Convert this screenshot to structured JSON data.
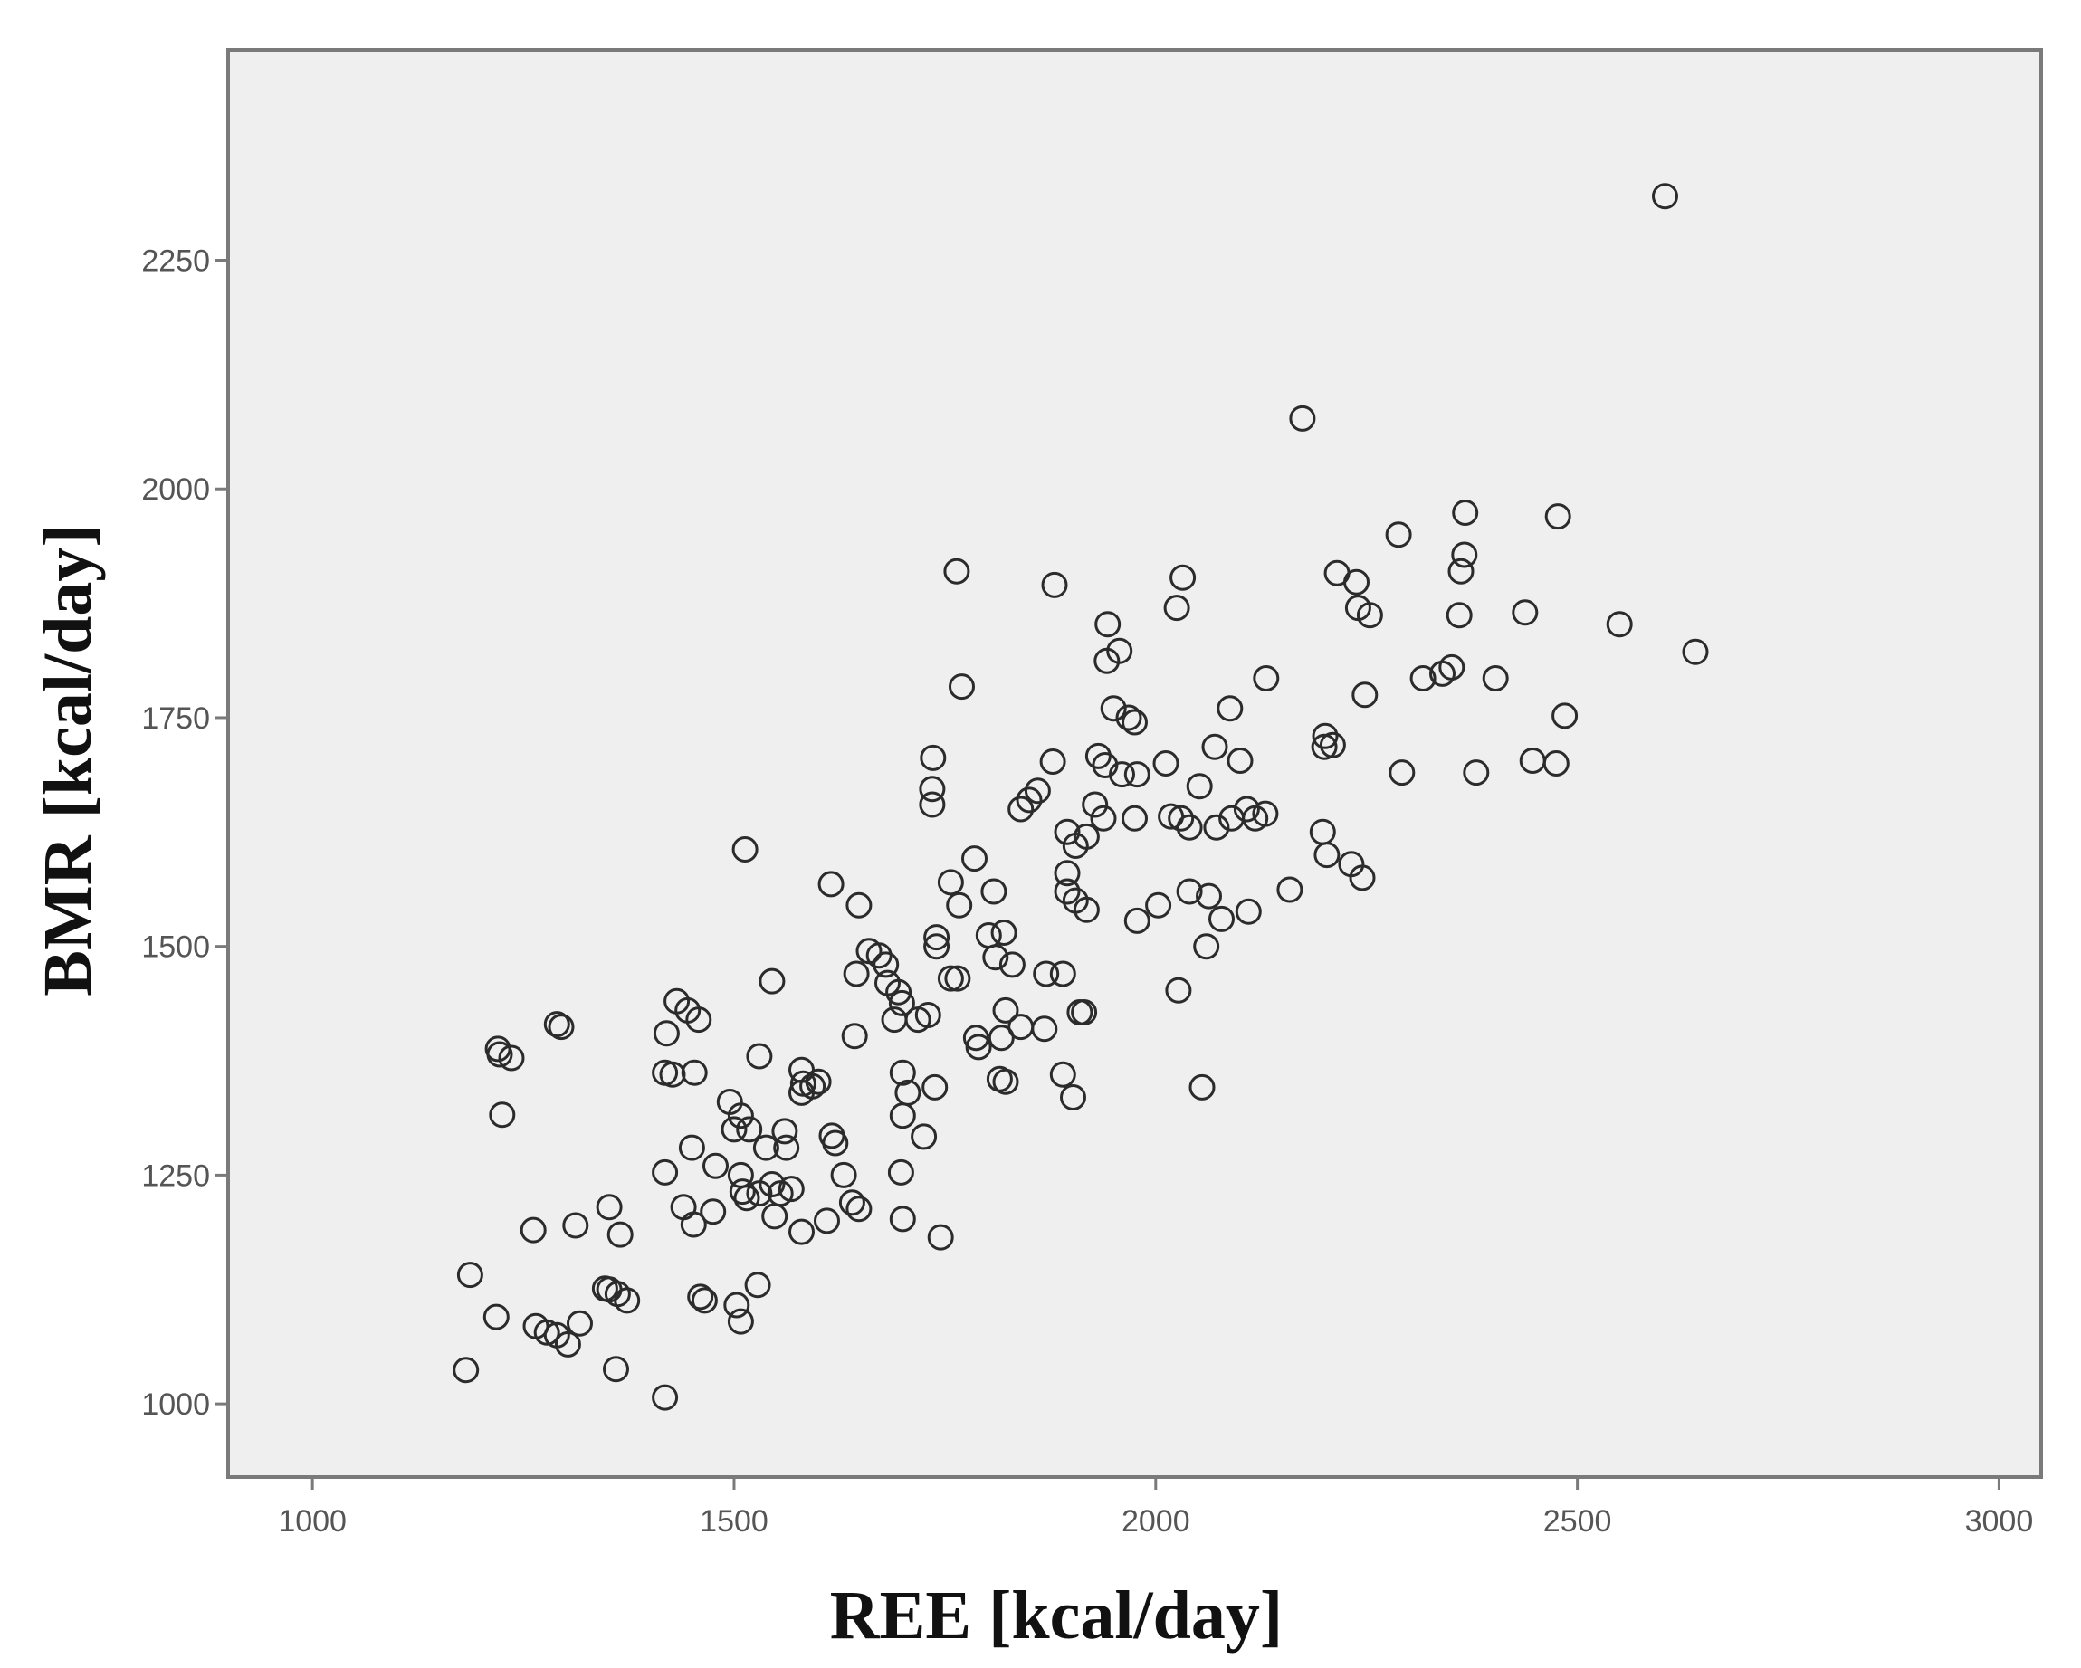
{
  "chart_data": {
    "type": "scatter",
    "title": "",
    "xlabel": "REE [kcal/day]",
    "ylabel": "BMR [kcal/day]",
    "xlim": [
      900,
      3050
    ],
    "ylim": [
      920,
      2480
    ],
    "xticks": [
      1000,
      1500,
      2000,
      2500,
      3000
    ],
    "yticks": [
      1000,
      1250,
      1500,
      1750,
      2000,
      2250
    ],
    "grid": false,
    "legend": "none",
    "colors": {
      "plot_background": "#efefef",
      "frame": "#7a7a7a",
      "marker": "#2b2b2b"
    },
    "points": [
      [
        2604,
        2320
      ],
      [
        2174,
        2077
      ],
      [
        1764,
        1910
      ],
      [
        1880,
        1895
      ],
      [
        2032,
        1903
      ],
      [
        2025,
        1870
      ],
      [
        2367,
        1974
      ],
      [
        2477,
        1970
      ],
      [
        2288,
        1950
      ],
      [
        2215,
        1908
      ],
      [
        2238,
        1898
      ],
      [
        2362,
        1910
      ],
      [
        2366,
        1928
      ],
      [
        2240,
        1870
      ],
      [
        2254,
        1862
      ],
      [
        2360,
        1862
      ],
      [
        2438,
        1865
      ],
      [
        2550,
        1852
      ],
      [
        2640,
        1822
      ],
      [
        1943,
        1852
      ],
      [
        1957,
        1823
      ],
      [
        1942,
        1812
      ],
      [
        1770,
        1784
      ],
      [
        2131,
        1793
      ],
      [
        2317,
        1793
      ],
      [
        2340,
        1798
      ],
      [
        2351,
        1805
      ],
      [
        2403,
        1793
      ],
      [
        2248,
        1775
      ],
      [
        1950,
        1760
      ],
      [
        1968,
        1750
      ],
      [
        1975,
        1745
      ],
      [
        2088,
        1760
      ],
      [
        2485,
        1752
      ],
      [
        2201,
        1730
      ],
      [
        2200,
        1718
      ],
      [
        2210,
        1720
      ],
      [
        2447,
        1703
      ],
      [
        2475,
        1700
      ],
      [
        2292,
        1690
      ],
      [
        2380,
        1690
      ],
      [
        1736,
        1706
      ],
      [
        1878,
        1702
      ],
      [
        1932,
        1708
      ],
      [
        1940,
        1698
      ],
      [
        1960,
        1688
      ],
      [
        1978,
        1688
      ],
      [
        2012,
        1700
      ],
      [
        2070,
        1718
      ],
      [
        2100,
        1703
      ],
      [
        2052,
        1675
      ],
      [
        1735,
        1672
      ],
      [
        1735,
        1655
      ],
      [
        1840,
        1650
      ],
      [
        1850,
        1660
      ],
      [
        1860,
        1670
      ],
      [
        1928,
        1655
      ],
      [
        1938,
        1640
      ],
      [
        1975,
        1640
      ],
      [
        2018,
        1642
      ],
      [
        2030,
        1640
      ],
      [
        2040,
        1630
      ],
      [
        2072,
        1630
      ],
      [
        2090,
        1640
      ],
      [
        2108,
        1650
      ],
      [
        2118,
        1640
      ],
      [
        2130,
        1645
      ],
      [
        2198,
        1625
      ],
      [
        2203,
        1600
      ],
      [
        2232,
        1590
      ],
      [
        2245,
        1575
      ],
      [
        1513,
        1606
      ],
      [
        1785,
        1596
      ],
      [
        1895,
        1625
      ],
      [
        1905,
        1610
      ],
      [
        1918,
        1620
      ],
      [
        1895,
        1580
      ],
      [
        1895,
        1560
      ],
      [
        1905,
        1550
      ],
      [
        1918,
        1540
      ],
      [
        1978,
        1528
      ],
      [
        2003,
        1545
      ],
      [
        2040,
        1560
      ],
      [
        2063,
        1555
      ],
      [
        2078,
        1530
      ],
      [
        2060,
        1500
      ],
      [
        2110,
        1538
      ],
      [
        2159,
        1562
      ],
      [
        1615,
        1568
      ],
      [
        1648,
        1545
      ],
      [
        1757,
        1570
      ],
      [
        1767,
        1545
      ],
      [
        1808,
        1560
      ],
      [
        1740,
        1510
      ],
      [
        1740,
        1500
      ],
      [
        1802,
        1512
      ],
      [
        1820,
        1515
      ],
      [
        1660,
        1495
      ],
      [
        1672,
        1490
      ],
      [
        1680,
        1480
      ],
      [
        1645,
        1470
      ],
      [
        1682,
        1460
      ],
      [
        1695,
        1450
      ],
      [
        1699,
        1438
      ],
      [
        1757,
        1465
      ],
      [
        1765,
        1465
      ],
      [
        1810,
        1488
      ],
      [
        1830,
        1480
      ],
      [
        1870,
        1470
      ],
      [
        1890,
        1470
      ],
      [
        1545,
        1462
      ],
      [
        1432,
        1440
      ],
      [
        1445,
        1430
      ],
      [
        1458,
        1420
      ],
      [
        1420,
        1405
      ],
      [
        1643,
        1402
      ],
      [
        1690,
        1420
      ],
      [
        1718,
        1420
      ],
      [
        1730,
        1425
      ],
      [
        1787,
        1400
      ],
      [
        1790,
        1390
      ],
      [
        1817,
        1400
      ],
      [
        1822,
        1430
      ],
      [
        1840,
        1412
      ],
      [
        1868,
        1410
      ],
      [
        1910,
        1428
      ],
      [
        1915,
        1428
      ],
      [
        2027,
        1452
      ],
      [
        1220,
        1388
      ],
      [
        1222,
        1382
      ],
      [
        1236,
        1378
      ],
      [
        1290,
        1415
      ],
      [
        1295,
        1412
      ],
      [
        1418,
        1362
      ],
      [
        1427,
        1360
      ],
      [
        1453,
        1362
      ],
      [
        1530,
        1380
      ],
      [
        1580,
        1365
      ],
      [
        1582,
        1350
      ],
      [
        1593,
        1347
      ],
      [
        1600,
        1352
      ],
      [
        1700,
        1362
      ],
      [
        1706,
        1340
      ],
      [
        1738,
        1346
      ],
      [
        1815,
        1355
      ],
      [
        1822,
        1352
      ],
      [
        1890,
        1360
      ],
      [
        1902,
        1335
      ],
      [
        2055,
        1346
      ],
      [
        1225,
        1316
      ],
      [
        1495,
        1330
      ],
      [
        1508,
        1315
      ],
      [
        1518,
        1300
      ],
      [
        1500,
        1300
      ],
      [
        1538,
        1280
      ],
      [
        1560,
        1298
      ],
      [
        1562,
        1280
      ],
      [
        1580,
        1340
      ],
      [
        1616,
        1293
      ],
      [
        1620,
        1285
      ],
      [
        1700,
        1315
      ],
      [
        1725,
        1292
      ],
      [
        1418,
        1253
      ],
      [
        1450,
        1280
      ],
      [
        1478,
        1260
      ],
      [
        1508,
        1250
      ],
      [
        1510,
        1232
      ],
      [
        1515,
        1225
      ],
      [
        1530,
        1230
      ],
      [
        1545,
        1240
      ],
      [
        1555,
        1230
      ],
      [
        1568,
        1235
      ],
      [
        1630,
        1250
      ],
      [
        1698,
        1253
      ],
      [
        1440,
        1215
      ],
      [
        1452,
        1196
      ],
      [
        1475,
        1210
      ],
      [
        1548,
        1205
      ],
      [
        1580,
        1188
      ],
      [
        1610,
        1200
      ],
      [
        1640,
        1220
      ],
      [
        1648,
        1213
      ],
      [
        1700,
        1202
      ],
      [
        1745,
        1182
      ],
      [
        1262,
        1190
      ],
      [
        1312,
        1195
      ],
      [
        1352,
        1215
      ],
      [
        1365,
        1185
      ],
      [
        1347,
        1126
      ],
      [
        1352,
        1125
      ],
      [
        1362,
        1120
      ],
      [
        1373,
        1113
      ],
      [
        1460,
        1117
      ],
      [
        1465,
        1113
      ],
      [
        1528,
        1130
      ],
      [
        1187,
        1141
      ],
      [
        1218,
        1095
      ],
      [
        1265,
        1085
      ],
      [
        1278,
        1078
      ],
      [
        1290,
        1075
      ],
      [
        1303,
        1065
      ],
      [
        1317,
        1088
      ],
      [
        1182,
        1037
      ],
      [
        1360,
        1038
      ],
      [
        1503,
        1108
      ],
      [
        1508,
        1090
      ],
      [
        1418,
        1007
      ]
    ]
  }
}
